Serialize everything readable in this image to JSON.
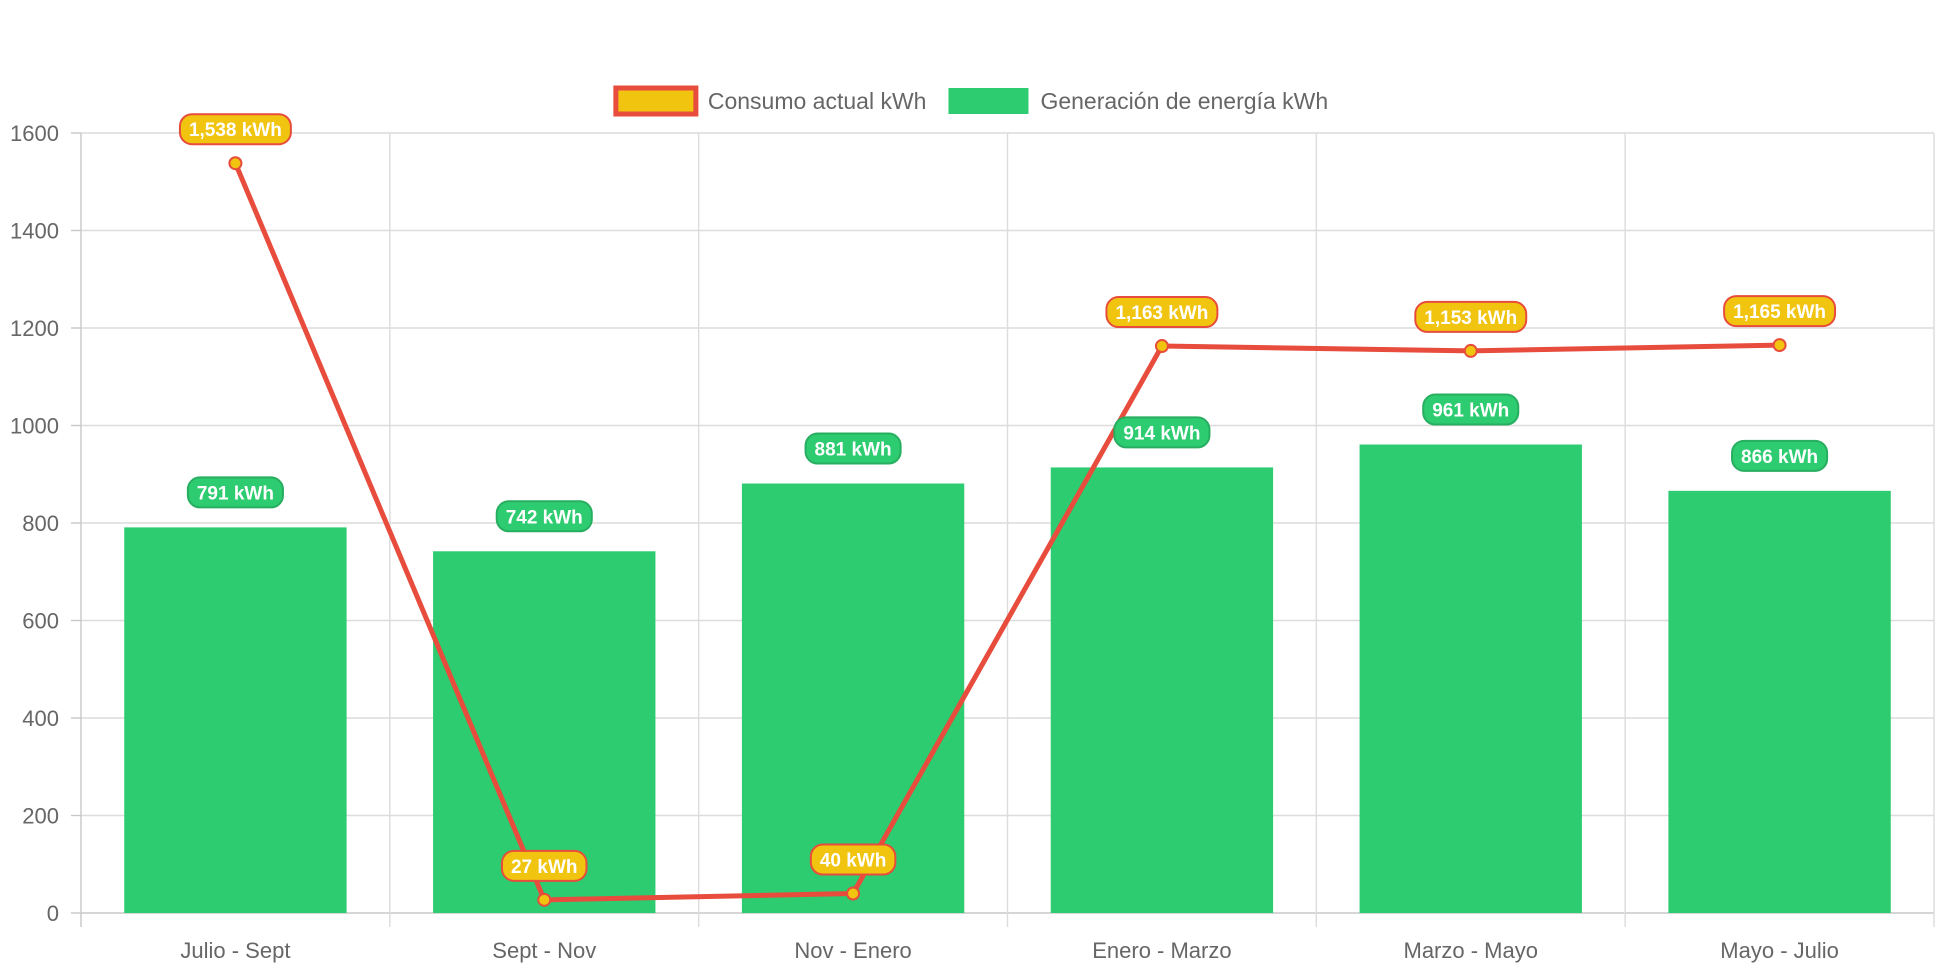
{
  "chart_data": {
    "type": "bar",
    "categories": [
      "Julio - Sept",
      "Sept - Nov",
      "Nov - Enero",
      "Enero - Marzo",
      "Marzo - Mayo",
      "Mayo - Julio"
    ],
    "series": [
      {
        "name": "Generación de energía kWh",
        "type": "bar",
        "color": "#2ecc71",
        "values": [
          791,
          742,
          881,
          914,
          961,
          866
        ],
        "labels": [
          "791 kWh",
          "742 kWh",
          "881 kWh",
          "914 kWh",
          "961 kWh",
          "866 kWh"
        ]
      },
      {
        "name": "Consumo actual kWh",
        "type": "line",
        "color": "#e74c3c",
        "fill_color": "#f1c40f",
        "values": [
          1538,
          27,
          40,
          1163,
          1153,
          1165
        ],
        "labels": [
          "1,538 kWh",
          "27 kWh",
          "40 kWh",
          "1,163 kWh",
          "1,153 kWh",
          "1,165 kWh"
        ]
      }
    ],
    "y_ticks": [
      0,
      200,
      400,
      600,
      800,
      1000,
      1200,
      1400,
      1600
    ],
    "ylim": [
      0,
      1600
    ],
    "grid": true,
    "legend_position": "top",
    "legend": [
      {
        "label": "Consumo actual kWh",
        "color": "#f1c40f",
        "border": "#e74c3c"
      },
      {
        "label": "Generación de energía kWh",
        "color": "#2ecc71",
        "border": "#2ecc71"
      }
    ]
  }
}
